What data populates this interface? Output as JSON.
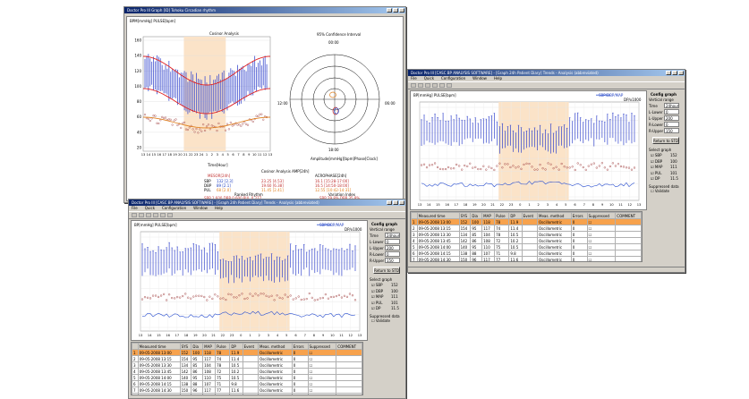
{
  "win1": {
    "title": "Doctor Pro III Graph [ID] Tohoku Circadian rhythm",
    "left_title": "BPM[mmHg] PULSE[bpm]",
    "center_title": "Cosinor Analysis",
    "polar_title": "95% Confidence Interval",
    "polar_top": "00:00",
    "polar_left": "12:00",
    "polar_right": "06:00",
    "polar_bottom": "18:00",
    "polar_xlabel": "Amplitude[mmHg][bpm]Phase[Clock]",
    "xaxis_title": "Time[Hour]",
    "y_ticks": [
      "160",
      "140",
      "120",
      "100",
      "80",
      "60",
      "40",
      "20"
    ],
    "x_ticks": [
      "13",
      "14",
      "15",
      "16",
      "17",
      "18",
      "19",
      "20",
      "21",
      "22",
      "23",
      "24",
      "1",
      "2",
      "3",
      "4",
      "5",
      "6",
      "7",
      "8",
      "9",
      "10",
      "11",
      "12",
      "13"
    ],
    "stats": {
      "col1_head": "MESOR[24h]",
      "col2_head": "Cosinor Analysis AMP[24h]",
      "col3_head": "ACROPHASE[24h]",
      "rows": [
        {
          "label": "SBP",
          "c1": "132 [2.3]",
          "c2": "23.25 [4.53]",
          "c3": "16.1 [15:28-17:00]"
        },
        {
          "label": "DBP",
          "c1": "89 [2.1]",
          "c2": "19.60 [6.38]",
          "c3": "16.5 [14:50-18:00]"
        },
        {
          "label": "PUL",
          "c1": "68 [2.0]",
          "c2": "11.45 [2.41]",
          "c3": "12.55 [10:42-14:31]"
        }
      ],
      "row_sbp_extra": "SBP 1.600  DBP 0.600  PUL 0.277",
      "ranked": "Ranked Rhythm",
      "variation": "Variation Index",
      "var_vals": "SBP 29.8%   DBP 35.8%"
    }
  },
  "win2": {
    "title": "Doctor Pro III [CASC BP ANALYSIS SOFTWARE] - [Graph 24h Patient Diary] Trends - Analysis (abbreviated)",
    "menu": [
      "File",
      "Quick",
      "Configuration",
      "Window",
      "Help"
    ],
    "plot_title": "BP[mmHg] PULSE[bpm]",
    "legend": "SBP/DBP/MAP",
    "legend2": "DP/x1000",
    "config_title": "Config graph",
    "vertical_range": "Vertical range",
    "fields": [
      {
        "label": "Time",
        "value": "24hour"
      },
      {
        "label": "L-Lower",
        "value": "0"
      },
      {
        "label": "L-Upper",
        "value": "200"
      },
      {
        "label": "R-Lower",
        "value": "0"
      },
      {
        "label": "R-Upper",
        "value": "150"
      }
    ],
    "return_btn": "Return to STD",
    "select_graph": "Select graph",
    "checks": [
      {
        "label": "SBP",
        "value": "152"
      },
      {
        "label": "DBP",
        "value": "100"
      },
      {
        "label": "MAP",
        "value": "111"
      },
      {
        "label": "PUL",
        "value": "101"
      },
      {
        "label": "DP",
        "value": "11.5"
      }
    ],
    "suppressed": "Suppressed data",
    "validate": "Validate",
    "x_ticks": [
      "13",
      "14",
      "15",
      "16",
      "17",
      "18",
      "19",
      "20",
      "21",
      "22",
      "23",
      "0",
      "1",
      "2",
      "3",
      "4",
      "5",
      "6",
      "7",
      "8",
      "9",
      "10",
      "11",
      "12",
      "13"
    ],
    "columns": [
      "",
      "Measured time",
      "SYS",
      "Dia",
      "MAP",
      "Pulse",
      "DP",
      "Event",
      "Meas. method",
      "Errors",
      "Suppressed",
      "COMMENT"
    ],
    "rows": [
      [
        "1",
        "09-05-2008 13:00",
        "152",
        "100",
        "118",
        "78",
        "11.9",
        "",
        "Oscillometric",
        "0",
        "",
        ""
      ],
      [
        "2",
        "09-05-2008 13:15",
        "154",
        "95",
        "117",
        "74",
        "11.4",
        "",
        "Oscillometric",
        "0",
        "",
        ""
      ],
      [
        "3",
        "09-05-2008 13:30",
        "134",
        "85",
        "104",
        "78",
        "10.5",
        "",
        "Oscillometric",
        "0",
        "",
        ""
      ],
      [
        "4",
        "09-05-2008 13:45",
        "142",
        "86",
        "108",
        "72",
        "10.2",
        "",
        "Oscillometric",
        "0",
        "",
        ""
      ],
      [
        "5",
        "09-05-2008 14:00",
        "140",
        "95",
        "110",
        "75",
        "10.5",
        "",
        "Oscillometric",
        "0",
        "",
        ""
      ],
      [
        "6",
        "09-05-2008 14:15",
        "138",
        "88",
        "107",
        "71",
        "9.8",
        "",
        "Oscillometric",
        "0",
        "",
        ""
      ],
      [
        "7",
        "09-05-2008 14:30",
        "150",
        "96",
        "117",
        "77",
        "11.6",
        "",
        "Oscillometric",
        "0",
        "",
        ""
      ],
      [
        "8",
        "09-05-2008 14:45",
        "133",
        "87",
        "104",
        "71",
        "9.4",
        "",
        "Oscillometric",
        "0",
        "",
        ""
      ]
    ]
  },
  "win3": {
    "title": "Doctor Pro III [CASC BP ANALYSIS SOFTWARE] - [Graph 24h Patient Diary] Trends - Analysis (abbreviated)",
    "menu": [
      "File",
      "Quick",
      "Configuration",
      "Window",
      "Help"
    ],
    "plot_title": "BP[mmHg] PULSE[bpm]",
    "legend": "SBP/DBP/MAP",
    "legend2": "DP/x1000",
    "config_title": "Config graph",
    "vertical_range": "Vertical range",
    "fields": [
      {
        "label": "Time",
        "value": "24hour"
      },
      {
        "label": "L-Lower",
        "value": "0"
      },
      {
        "label": "L-Upper",
        "value": "200"
      },
      {
        "label": "R-Lower",
        "value": "0"
      },
      {
        "label": "R-Upper",
        "value": "150"
      }
    ],
    "return_btn": "Return to STD",
    "select_graph": "Select graph",
    "checks": [
      {
        "label": "SBP",
        "value": "152"
      },
      {
        "label": "DBP",
        "value": "100"
      },
      {
        "label": "MAP",
        "value": "111"
      },
      {
        "label": "PUL",
        "value": "101"
      },
      {
        "label": "DP",
        "value": "11.5"
      }
    ],
    "suppressed": "Suppressed data",
    "validate": "Validate",
    "x_ticks": [
      "13",
      "14",
      "15",
      "16",
      "17",
      "18",
      "19",
      "20",
      "21",
      "22",
      "23",
      "0",
      "1",
      "2",
      "3",
      "4",
      "5",
      "6",
      "7",
      "8",
      "9",
      "10",
      "11",
      "12",
      "13"
    ],
    "columns": [
      "",
      "Measured time",
      "SYS",
      "Dia",
      "MAP",
      "Pulse",
      "DP",
      "Event",
      "Meas. method",
      "Errors",
      "Suppressed",
      "COMMENT"
    ],
    "rows": [
      [
        "1",
        "09-05-2008 13:00",
        "152",
        "100",
        "118",
        "78",
        "11.9",
        "",
        "Oscillometric",
        "0",
        "",
        ""
      ],
      [
        "2",
        "09-05-2008 13:15",
        "154",
        "95",
        "117",
        "74",
        "11.4",
        "",
        "Oscillometric",
        "0",
        "",
        ""
      ],
      [
        "3",
        "09-05-2008 13:30",
        "134",
        "85",
        "104",
        "78",
        "10.5",
        "",
        "Oscillometric",
        "0",
        "",
        ""
      ],
      [
        "4",
        "09-05-2008 13:45",
        "142",
        "86",
        "108",
        "72",
        "10.2",
        "",
        "Oscillometric",
        "0",
        "",
        ""
      ],
      [
        "5",
        "09-05-2008 14:00",
        "140",
        "95",
        "110",
        "75",
        "10.5",
        "",
        "Oscillometric",
        "0",
        "",
        ""
      ],
      [
        "6",
        "09-05-2008 14:15",
        "138",
        "88",
        "107",
        "71",
        "9.8",
        "",
        "Oscillometric",
        "0",
        "",
        ""
      ],
      [
        "7",
        "09-05-2008 14:30",
        "150",
        "96",
        "117",
        "77",
        "11.6",
        "",
        "Oscillometric",
        "0",
        "",
        ""
      ],
      [
        "8",
        "09-05-2008 14:45",
        "133",
        "87",
        "104",
        "71",
        "9.4",
        "",
        "Oscillometric",
        "0",
        "",
        ""
      ]
    ]
  },
  "colors": {
    "sbp": "#3344cc",
    "dbp": "#3344cc",
    "cosinor": "#e02020",
    "pulse": "#a04040",
    "night": "#fbe3c8",
    "dp": "#2a4fd0"
  }
}
